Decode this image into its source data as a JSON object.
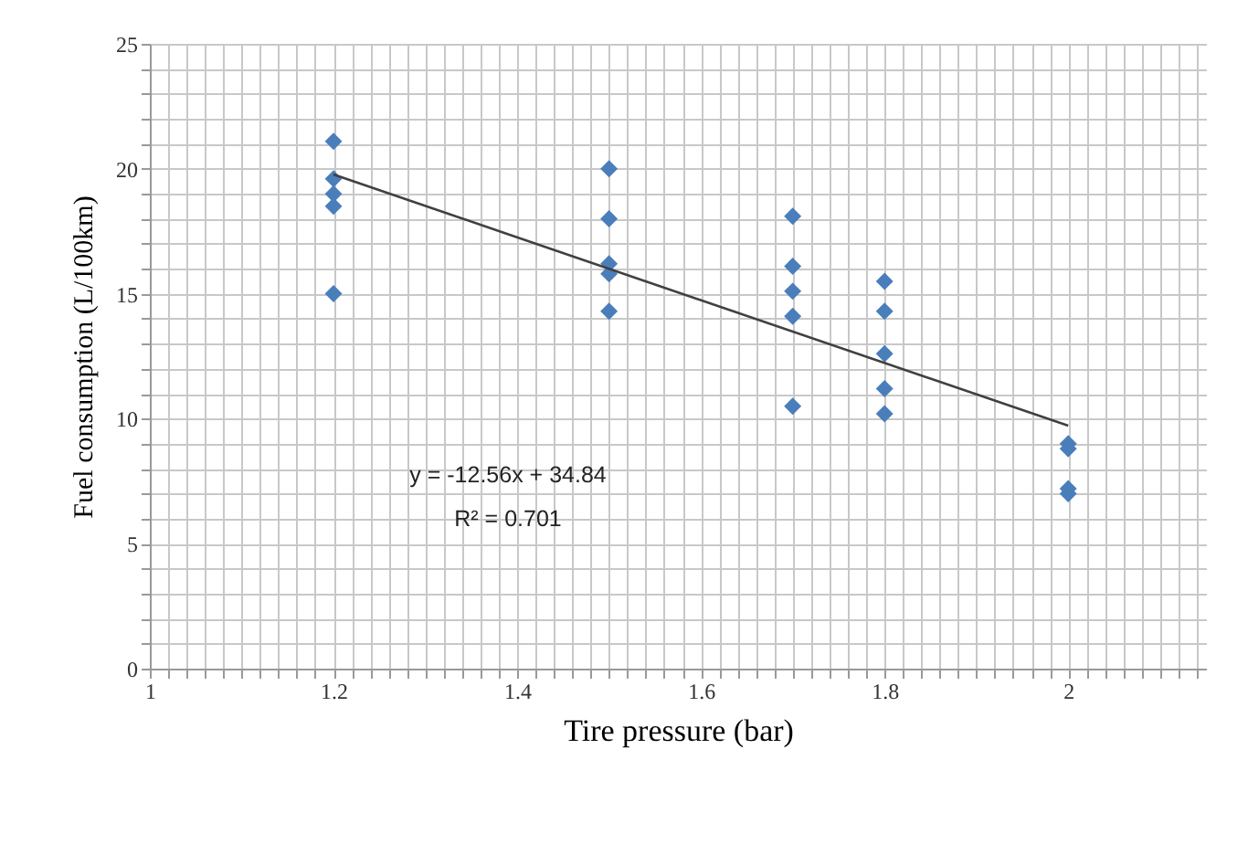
{
  "chart_data": {
    "type": "scatter",
    "xlabel": "Tire pressure (bar)",
    "ylabel": "Fuel consumption (L/100km)",
    "series": [
      {
        "type": "scatter",
        "color": "#4a7ebb",
        "marker": "diamond",
        "x": [
          1.2,
          1.2,
          1.2,
          1.2,
          1.2,
          1.5,
          1.5,
          1.5,
          1.5,
          1.5,
          1.7,
          1.7,
          1.7,
          1.7,
          1.7,
          1.8,
          1.8,
          1.8,
          1.8,
          1.8,
          2,
          2,
          2,
          2
        ],
        "values": [
          21.1,
          19.6,
          19,
          18.5,
          15,
          20,
          18,
          16.2,
          15.8,
          14.3,
          18.1,
          16.1,
          15.1,
          14.1,
          10.5,
          15.5,
          14.3,
          12.6,
          11.2,
          10.2,
          9,
          8.8,
          7.2,
          7
        ]
      },
      {
        "type": "line",
        "color": "#404040",
        "marker": "none",
        "x": [
          1.2,
          2
        ],
        "values": [
          19.77,
          9.72
        ]
      }
    ],
    "xlim": [
      1,
      2.15
    ],
    "ylim": [
      0,
      25
    ],
    "xticks": [
      1,
      {
        "value": 1.02,
        "label": null
      },
      {
        "value": 1.04,
        "label": null
      },
      {
        "value": 1.06,
        "label": null
      },
      {
        "value": 1.08,
        "label": null
      },
      {
        "value": 1.1,
        "label": null
      },
      {
        "value": 1.12,
        "label": null
      },
      {
        "value": 1.14,
        "label": null
      },
      {
        "value": 1.16,
        "label": null
      },
      {
        "value": 1.18,
        "label": null
      },
      1.2,
      {
        "value": 1.22,
        "label": null
      },
      {
        "value": 1.24,
        "label": null
      },
      {
        "value": 1.26,
        "label": null
      },
      {
        "value": 1.28,
        "label": null
      },
      {
        "value": 1.3,
        "label": null
      },
      {
        "value": 1.32,
        "label": null
      },
      {
        "value": 1.34,
        "label": null
      },
      {
        "value": 1.36,
        "label": null
      },
      {
        "value": 1.38,
        "label": null
      },
      1.4,
      {
        "value": 1.42,
        "label": null
      },
      {
        "value": 1.44,
        "label": null
      },
      {
        "value": 1.46,
        "label": null
      },
      {
        "value": 1.48,
        "label": null
      },
      {
        "value": 1.5,
        "label": null
      },
      {
        "value": 1.52,
        "label": null
      },
      {
        "value": 1.54,
        "label": null
      },
      {
        "value": 1.56,
        "label": null
      },
      {
        "value": 1.58,
        "label": null
      },
      1.6,
      {
        "value": 1.62,
        "label": null
      },
      {
        "value": 1.64,
        "label": null
      },
      {
        "value": 1.66,
        "label": null
      },
      {
        "value": 1.68,
        "label": null
      },
      {
        "value": 1.7,
        "label": null
      },
      {
        "value": 1.72,
        "label": null
      },
      {
        "value": 1.74,
        "label": null
      },
      {
        "value": 1.76,
        "label": null
      },
      {
        "value": 1.78,
        "label": null
      },
      1.8,
      {
        "value": 1.82,
        "label": null
      },
      {
        "value": 1.84,
        "label": null
      },
      {
        "value": 1.86,
        "label": null
      },
      {
        "value": 1.88,
        "label": null
      },
      {
        "value": 1.9,
        "label": null
      },
      {
        "value": 1.92,
        "label": null
      },
      {
        "value": 1.94,
        "label": null
      },
      {
        "value": 1.96,
        "label": null
      },
      {
        "value": 1.98,
        "label": null
      },
      2,
      {
        "value": 2.02,
        "label": null
      },
      {
        "value": 2.04,
        "label": null
      },
      {
        "value": 2.06,
        "label": null
      },
      {
        "value": 2.08,
        "label": null
      },
      {
        "value": 2.1,
        "label": null
      },
      {
        "value": 2.12,
        "label": null
      },
      {
        "value": 2.14,
        "label": null
      }
    ],
    "yticks": [
      0,
      {
        "value": 1,
        "label": null
      },
      {
        "value": 2,
        "label": null
      },
      {
        "value": 3,
        "label": null
      },
      {
        "value": 4,
        "label": null
      },
      5,
      {
        "value": 6,
        "label": null
      },
      {
        "value": 7,
        "label": null
      },
      {
        "value": 8,
        "label": null
      },
      {
        "value": 9,
        "label": null
      },
      10,
      {
        "value": 11,
        "label": null
      },
      {
        "value": 12,
        "label": null
      },
      {
        "value": 13,
        "label": null
      },
      {
        "value": 14,
        "label": null
      },
      15,
      {
        "value": 16,
        "label": null
      },
      {
        "value": 17,
        "label": null
      },
      {
        "value": 18,
        "label": null
      },
      {
        "value": 19,
        "label": null
      },
      20,
      {
        "value": 21,
        "label": null
      },
      {
        "value": 22,
        "label": null
      },
      {
        "value": 23,
        "label": null
      },
      {
        "value": 24,
        "label": null
      },
      25
    ],
    "grid": true,
    "annotations": [
      "y = -12.56x + 34.84",
      "R² = 0.701"
    ]
  }
}
